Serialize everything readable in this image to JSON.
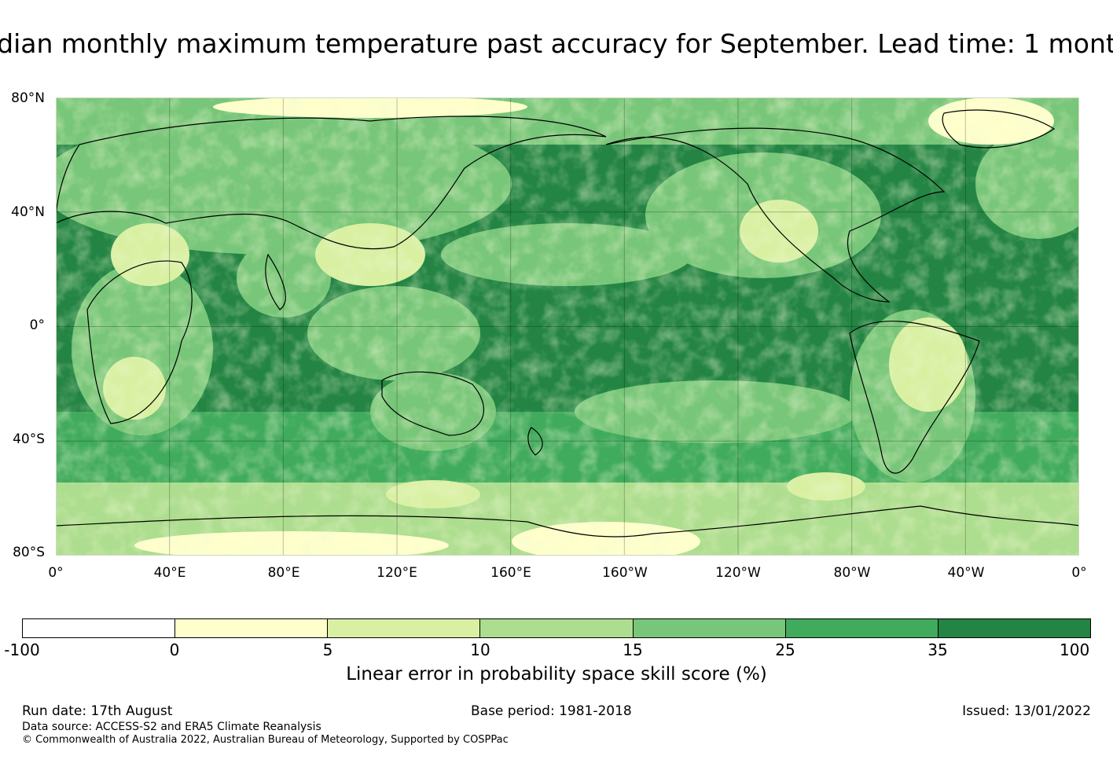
{
  "title": "dian monthly maximum temperature past accuracy for September. Lead time: 1 mont",
  "map": {
    "lat_labels": [
      "80°N",
      "40°N",
      "0°",
      "40°S",
      "80°S"
    ],
    "lon_labels": [
      "0°",
      "40°E",
      "80°E",
      "120°E",
      "160°E",
      "160°W",
      "120°W",
      "80°W",
      "40°W",
      "0°"
    ],
    "colors": {
      "ocean_dark": "#238443",
      "mid_green": "#41ab5d",
      "light_green": "#78c679",
      "pale_green": "#addd8e",
      "very_pale": "#d9f0a3",
      "cream": "#ffffcc",
      "coast": "#000000"
    }
  },
  "colorbar": {
    "colors": [
      "#ffffff",
      "#ffffcc",
      "#d9f0a3",
      "#addd8e",
      "#78c679",
      "#41ab5d",
      "#238443"
    ],
    "ticks": [
      "-100",
      "0",
      "5",
      "10",
      "15",
      "25",
      "35",
      "100"
    ],
    "caption": "Linear error in probability space skill score (%)"
  },
  "footer": {
    "run_date": "Run date: 17th August",
    "base_period": "Base period: 1981-2018",
    "issued": "Issued: 13/01/2022",
    "data_source": "Data source: ACCESS-S2 and ERA5 Climate Reanalysis",
    "copyright": "© Commonwealth of Australia 2022, Australian Bureau of Meteorology, Supported by COSPPac"
  }
}
